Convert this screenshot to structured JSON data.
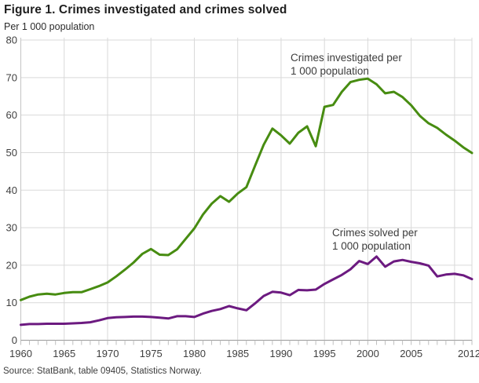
{
  "chart_data": {
    "type": "line",
    "title": "Figure 1. Crimes investigated and crimes solved",
    "subtitle": "Per 1 000 population",
    "xlabel": "",
    "ylabel": "Per 1 000 population",
    "ylim": [
      0,
      80
    ],
    "yticks": [
      0,
      10,
      20,
      30,
      40,
      50,
      60,
      70,
      80
    ],
    "xtick_labels": [
      1960,
      1965,
      1970,
      1975,
      1980,
      1985,
      1990,
      1995,
      2000,
      2005,
      2012
    ],
    "grid": true,
    "grid_years": [
      1965,
      1970,
      1975,
      1980,
      1985,
      1990,
      1995,
      2000,
      2005,
      2010,
      2012
    ],
    "legend": "none - series labelled directly on chart",
    "x": [
      1960,
      1961,
      1962,
      1963,
      1964,
      1965,
      1966,
      1967,
      1968,
      1969,
      1970,
      1971,
      1972,
      1973,
      1974,
      1975,
      1976,
      1977,
      1978,
      1979,
      1980,
      1981,
      1982,
      1983,
      1984,
      1985,
      1986,
      1987,
      1988,
      1989,
      1990,
      1991,
      1992,
      1993,
      1994,
      1995,
      1996,
      1997,
      1998,
      1999,
      2000,
      2001,
      2002,
      2003,
      2004,
      2005,
      2006,
      2007,
      2008,
      2009,
      2010,
      2011,
      2012
    ],
    "series": [
      {
        "name": "Crimes investigated per 1 000 population",
        "color": "#478c11",
        "values": [
          10.7,
          11.6,
          12.2,
          12.4,
          12.2,
          12.6,
          12.8,
          12.8,
          13.6,
          14.4,
          15.4,
          17.0,
          18.8,
          20.7,
          23.0,
          24.3,
          22.8,
          22.7,
          24.2,
          27.0,
          29.8,
          33.5,
          36.4,
          38.4,
          36.9,
          39.1,
          40.8,
          46.5,
          52.1,
          56.4,
          54.6,
          52.4,
          55.3,
          57.0,
          51.7,
          62.2,
          62.7,
          66.2,
          68.8,
          69.4,
          69.7,
          68.2,
          65.8,
          66.2,
          64.8,
          62.6,
          59.8,
          57.8,
          56.6,
          54.8,
          53.2,
          51.4,
          49.9
        ]
      },
      {
        "name": "Crimes solved per 1 000 population",
        "color": "#6c1a80",
        "values": [
          4.1,
          4.3,
          4.3,
          4.4,
          4.4,
          4.4,
          4.5,
          4.6,
          4.8,
          5.3,
          5.9,
          6.1,
          6.2,
          6.3,
          6.3,
          6.2,
          6.0,
          5.8,
          6.4,
          6.4,
          6.2,
          7.1,
          7.8,
          8.3,
          9.1,
          8.5,
          8.0,
          9.8,
          11.8,
          12.9,
          12.7,
          12.0,
          13.4,
          13.3,
          13.5,
          15.0,
          16.2,
          17.4,
          18.9,
          21.1,
          20.3,
          22.3,
          19.6,
          21.0,
          21.4,
          20.9,
          20.5,
          19.9,
          17.0,
          17.5,
          17.7,
          17.3,
          16.3
        ]
      }
    ],
    "annotations": {
      "investigated": {
        "line1": "Crimes investigated per",
        "line2": "1 000 population"
      },
      "solved": {
        "line1": "Crimes solved per",
        "line2": "1 000 population"
      }
    }
  },
  "footer": {
    "source": "Source: StatBank, table 09405, Statistics Norway."
  },
  "colors": {
    "investigated": "#478c11",
    "solved": "#6c1a80",
    "grid": "#d9d9d9",
    "axis_bottom": "#999999",
    "axis_left": "#c4c4c4",
    "tick": "#bfbfbf",
    "tick_text": "#404040"
  }
}
